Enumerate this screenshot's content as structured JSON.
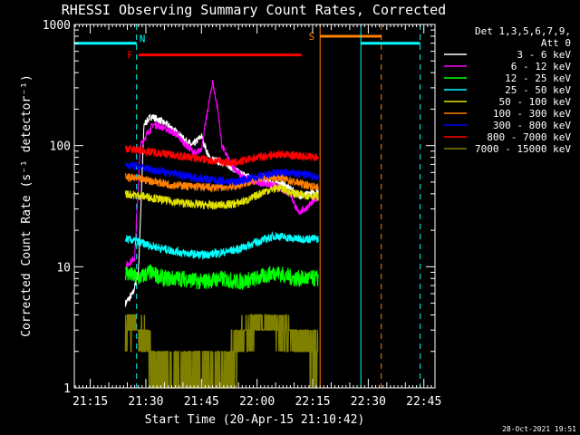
{
  "chart_data": {
    "type": "line",
    "title": "RHESSI Observing Summary Count Rates, Corrected",
    "xlabel": "Start Time (20-Apr-15 21:10:42)",
    "ylabel": "Corrected Count Rate (s⁻¹ detector⁻¹)",
    "y_scale": "log",
    "ylim": [
      1,
      1000
    ],
    "xlim": [
      "21:10:42",
      "22:48:00"
    ],
    "x_ticks": [
      "21:15",
      "21:30",
      "21:45",
      "22:00",
      "22:15",
      "22:30",
      "22:45"
    ],
    "y_ticks": [
      "1",
      "10",
      "100",
      "1000"
    ],
    "legend_title": [
      "Det 1,3,5,6,7,9,",
      "Att 0"
    ],
    "legend_position": "right",
    "timestamp": "28-Oct-2021 19:51",
    "data_start": "21:24:30",
    "data_end": "22:16:30",
    "series": [
      {
        "name": "3 - 6 keV",
        "color": "#ffffff",
        "x": [
          "21:24:30",
          "21:26:30",
          "21:28:00",
          "21:29:30",
          "21:31:30",
          "21:34:00",
          "21:37:00",
          "21:40:00",
          "21:42:30",
          "21:45:00",
          "21:47:00",
          "21:49:00",
          "21:52:00",
          "21:55:00",
          "21:58:00",
          "22:01:00",
          "22:04:00",
          "22:07:00",
          "22:10:00",
          "22:12:00",
          "22:14:00",
          "22:16:30"
        ],
        "y": [
          5,
          6,
          9,
          150,
          175,
          160,
          140,
          115,
          100,
          120,
          80,
          75,
          70,
          60,
          55,
          50,
          50,
          48,
          42,
          38,
          40,
          42
        ]
      },
      {
        "name": "6 - 12 keV",
        "color": "#ff00ff",
        "x": [
          "21:24:30",
          "21:27:00",
          "21:28:30",
          "21:30:00",
          "21:32:00",
          "21:35:00",
          "21:38:00",
          "21:41:00",
          "21:43:30",
          "21:45:00",
          "21:46:30",
          "21:48:00",
          "21:49:30",
          "21:50:30",
          "21:53:00",
          "21:56:00",
          "22:00:00",
          "22:03:00",
          "22:06:00",
          "22:09:00",
          "22:11:00",
          "22:13:00",
          "22:16:30"
        ],
        "y": [
          10,
          12,
          100,
          120,
          150,
          140,
          125,
          100,
          85,
          95,
          180,
          340,
          190,
          100,
          70,
          55,
          50,
          48,
          45,
          40,
          28,
          30,
          38
        ]
      },
      {
        "name": "12 - 25 keV",
        "color": "#00ff00",
        "x": [
          "21:24:30",
          "21:28:00",
          "21:31:00",
          "21:35:00",
          "21:40:00",
          "21:45:00",
          "21:50:00",
          "21:55:00",
          "22:00:00",
          "22:05:00",
          "22:10:00",
          "22:16:30"
        ],
        "y": [
          9,
          8,
          9,
          8,
          8,
          7.5,
          8,
          7.5,
          8,
          9,
          8,
          8
        ]
      },
      {
        "name": "25 - 50 keV",
        "color": "#00ffff",
        "x": [
          "21:24:30",
          "21:28:00",
          "21:31:00",
          "21:35:00",
          "21:40:00",
          "21:45:00",
          "21:50:00",
          "21:55:00",
          "22:00:00",
          "22:05:00",
          "22:10:00",
          "22:16:30"
        ],
        "y": [
          17,
          16,
          15,
          14,
          13,
          12.5,
          13,
          14,
          16,
          18,
          17,
          17
        ]
      },
      {
        "name": "50 - 100 keV",
        "color": "#e0e000",
        "x": [
          "21:24:30",
          "21:30:00",
          "21:36:00",
          "21:42:00",
          "21:48:00",
          "21:54:00",
          "21:58:00",
          "22:02:00",
          "22:06:00",
          "22:10:00",
          "22:16:30"
        ],
        "y": [
          40,
          38,
          35,
          33,
          32,
          33,
          36,
          42,
          45,
          40,
          38
        ]
      },
      {
        "name": "100 - 300 keV",
        "color": "#ff8000",
        "x": [
          "21:24:30",
          "21:30:00",
          "21:36:00",
          "21:42:00",
          "21:48:00",
          "21:54:00",
          "21:58:00",
          "22:02:00",
          "22:06:00",
          "22:10:00",
          "22:16:30"
        ],
        "y": [
          55,
          52,
          48,
          46,
          45,
          46,
          50,
          55,
          55,
          50,
          45
        ]
      },
      {
        "name": "300 - 800 keV",
        "color": "#0000ff",
        "x": [
          "21:24:30",
          "21:30:00",
          "21:36:00",
          "21:42:00",
          "21:48:00",
          "21:54:00",
          "22:00:00",
          "22:06:00",
          "22:12:00",
          "22:16:30"
        ],
        "y": [
          70,
          65,
          60,
          55,
          52,
          50,
          55,
          60,
          58,
          55
        ]
      },
      {
        "name": "800 - 7000 keV",
        "color": "#ff0000",
        "x": [
          "21:24:30",
          "21:30:00",
          "21:36:00",
          "21:42:00",
          "21:48:00",
          "21:54:00",
          "22:00:00",
          "22:06:00",
          "22:12:00",
          "22:16:30"
        ],
        "y": [
          95,
          90,
          85,
          80,
          75,
          72,
          80,
          85,
          82,
          80
        ]
      },
      {
        "name": "7000 - 15000 keV",
        "color": "#808000",
        "x": [
          "21:24:30",
          "21:26:30",
          "21:28:30",
          "21:30:30",
          "21:32:00",
          "21:35:00",
          "21:40:00",
          "21:45:00",
          "21:50:00",
          "21:54:00",
          "21:57:00",
          "22:00:00",
          "22:04:00",
          "22:07:00",
          "22:10:00",
          "22:13:00",
          "22:16:30"
        ],
        "y": [
          3,
          3.5,
          3,
          2.5,
          1.5,
          1.2,
          1.1,
          1.2,
          1.1,
          2,
          3,
          3.5,
          3.5,
          3,
          2.5,
          2.5,
          2
        ]
      }
    ],
    "flags": [
      {
        "label": "N",
        "color": "#00ffff",
        "x_start": "21:10:42",
        "x_end": "21:27:30",
        "y": 700,
        "label_position": "end"
      },
      {
        "label": "N",
        "color": "#00ffff",
        "x_start": "22:28:00",
        "x_end": "22:44:00",
        "y": 700,
        "label_position": "none"
      },
      {
        "label": "F",
        "color": "#ff0000",
        "x_start": "21:28:00",
        "x_end": "22:12:00",
        "y": 560,
        "label_position": "start"
      },
      {
        "label": "S",
        "color": "#ff8000",
        "x_start": "22:17:00",
        "x_end": "22:33:30",
        "y": 800,
        "label_position": "start"
      }
    ],
    "vlines": [
      {
        "x": "21:27:30",
        "color": "#00ffff",
        "style": "dashed"
      },
      {
        "x": "22:17:00",
        "color": "#ff8000",
        "style": "solid"
      },
      {
        "x": "22:28:00",
        "color": "#00ffff",
        "style": "solid"
      },
      {
        "x": "22:33:30",
        "color": "#ff8000",
        "style": "dashed"
      },
      {
        "x": "22:44:00",
        "color": "#00ffff",
        "style": "dashed"
      }
    ]
  }
}
